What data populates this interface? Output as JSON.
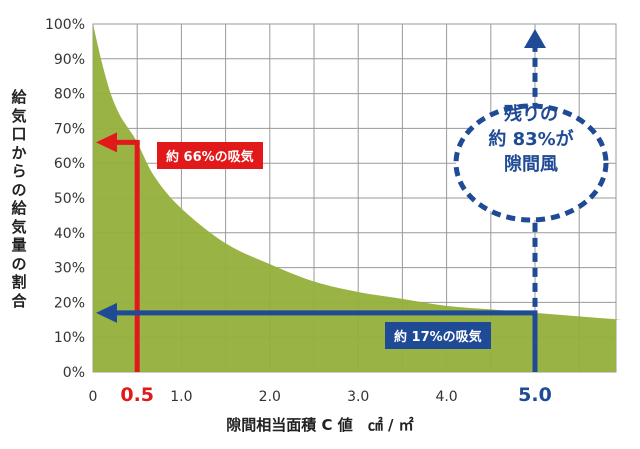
{
  "chart_data": {
    "type": "area",
    "title": "",
    "xlabel": "隙間相当面積 C 値　㎠ / ㎡",
    "ylabel": "給気口からの給気量の割合",
    "xlim": [
      0,
      6
    ],
    "ylim": [
      0,
      100
    ],
    "x_tick_labels": [
      "0",
      "1.0",
      "2.0",
      "3.0",
      "4.0",
      "5.0"
    ],
    "x_ticks": [
      0,
      1,
      2,
      3,
      4,
      5
    ],
    "y_ticks": [
      "0%",
      "10%",
      "20%",
      "30%",
      "40%",
      "50%",
      "60%",
      "70%",
      "80%",
      "90%",
      "100%"
    ],
    "grid": true,
    "series": [
      {
        "color": "#93b03a",
        "x": [
          0,
          0.1,
          0.2,
          0.3,
          0.4,
          0.5,
          0.7,
          1.0,
          1.5,
          2.0,
          2.5,
          3.0,
          3.5,
          4.0,
          4.5,
          5.0,
          5.5,
          6.0
        ],
        "y": [
          100,
          89,
          80,
          74,
          70,
          66,
          56,
          47,
          37,
          31,
          26,
          23,
          21,
          19,
          18,
          17,
          16,
          15
        ]
      }
    ],
    "highlights": [
      {
        "x": 0.5,
        "x_label": "0.5",
        "y": 66,
        "label": "約 66%の吸気",
        "color": "#e1191a"
      },
      {
        "x": 5.0,
        "x_label": "5.0",
        "y": 17,
        "label": "約 17%の吸気",
        "color": "#1f4a95"
      }
    ],
    "annotation": {
      "lines": [
        "残りの",
        "約 83%が",
        "隙間風"
      ],
      "color": "#1f4a95"
    }
  }
}
